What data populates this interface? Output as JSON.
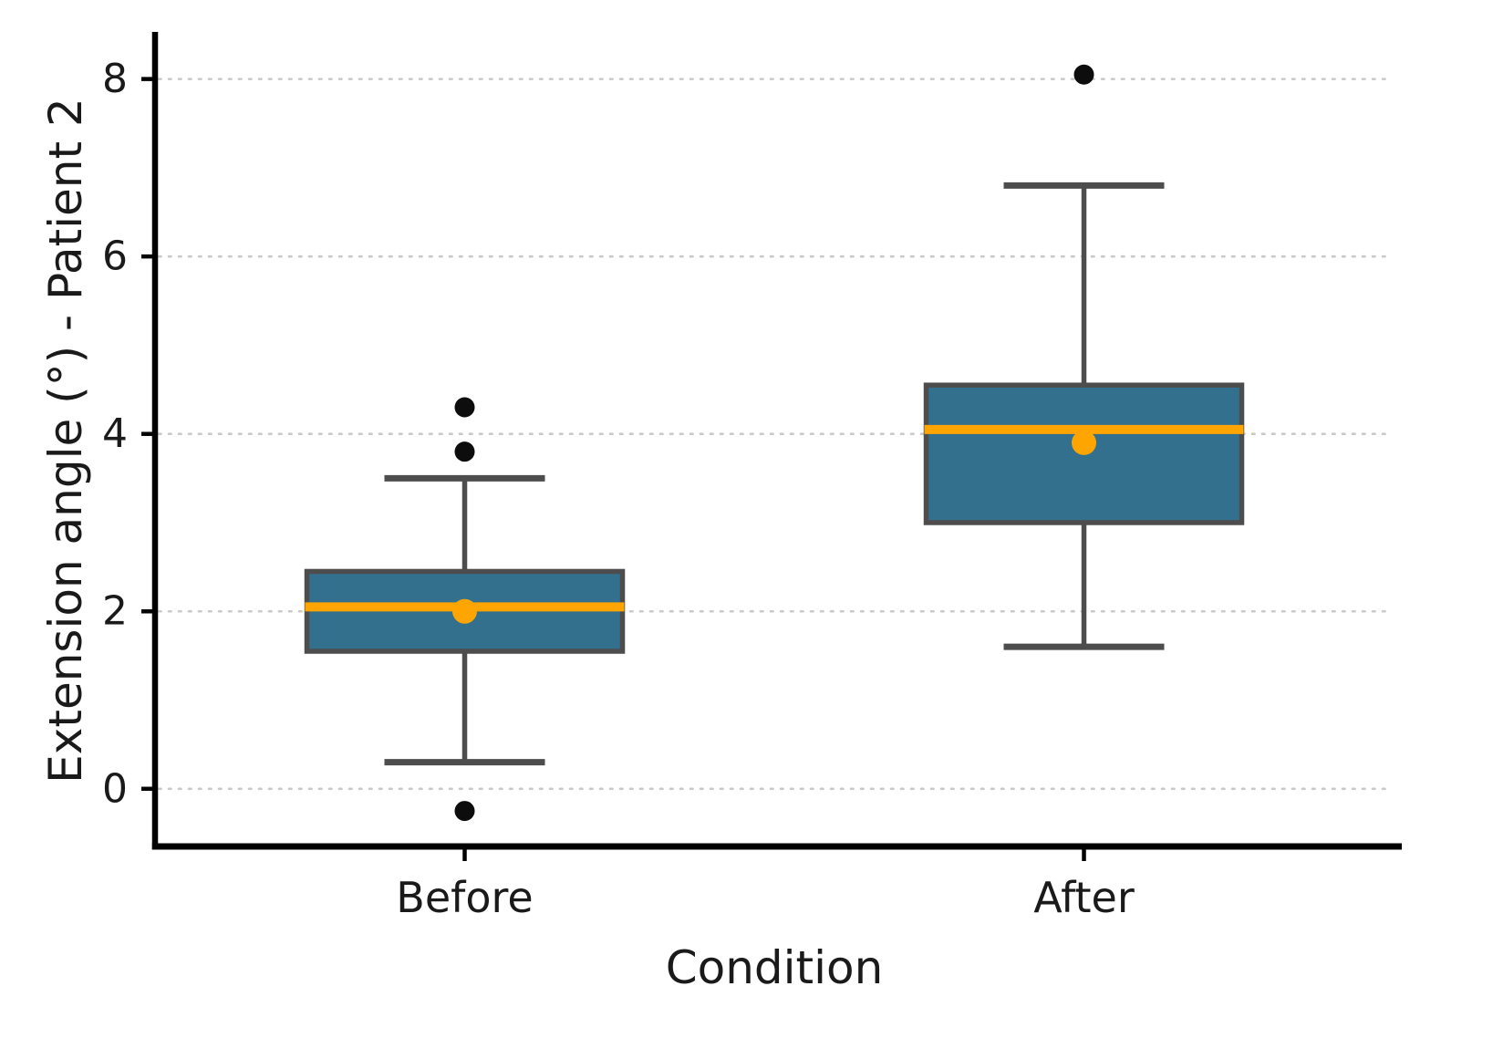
{
  "figure": {
    "background": "#ffffff"
  },
  "chart_data": {
    "type": "box",
    "title": "",
    "xlabel": "Condition",
    "ylabel": "Extension angle (°) - Patient 2",
    "categories": [
      "Before",
      "After"
    ],
    "ylim": [
      -0.65,
      8.5
    ],
    "yticks": [
      0,
      2,
      4,
      6,
      8
    ],
    "grid": "horizontal-dotted",
    "legend": "none",
    "series": [
      {
        "label": "Before",
        "q1": 1.55,
        "median": 2.05,
        "q3": 2.45,
        "whisker_low": 0.3,
        "whisker_high": 3.5,
        "mean": 2.0,
        "outliers": [
          4.3,
          3.8,
          -0.25
        ]
      },
      {
        "label": "After",
        "q1": 3.0,
        "median": 4.05,
        "q3": 4.55,
        "whisker_low": 1.6,
        "whisker_high": 6.8,
        "mean": 3.9,
        "outliers": [
          8.05
        ]
      }
    ],
    "style": {
      "box_fill": "#33708e",
      "box_edge": "#4d4d4d",
      "median_color": "#ffa502",
      "mean_color": "#ffa502",
      "outlier_color": "#0d0d0d",
      "grid_color": "#c9c9c9",
      "axis_color": "#000000",
      "text_color": "#1a1a1a"
    }
  }
}
